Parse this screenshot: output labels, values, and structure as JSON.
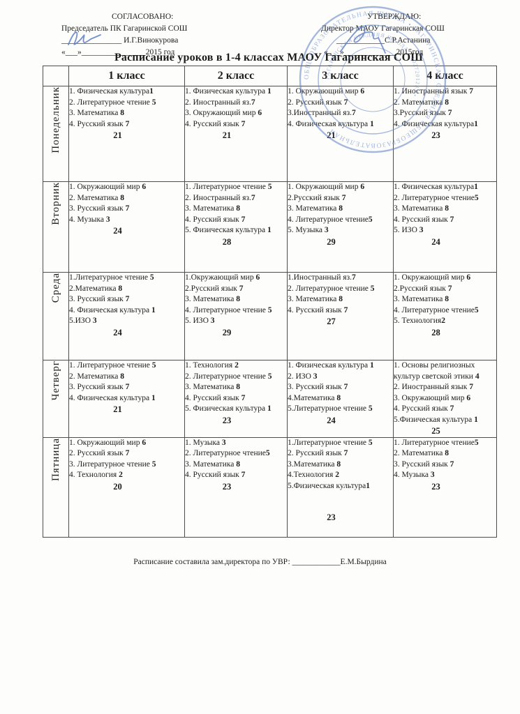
{
  "approval_left": {
    "heading": "СОГЛАСОВАНО:",
    "line2": "Председатель ПК Гагаринской СОШ",
    "line3": "_______________  И.Г.Винокурова",
    "line4": "«___»________________2015 год"
  },
  "approval_right": {
    "heading": "УТВЕРЖДАЮ:",
    "line2": "Директор МАОУ Гагаринская СОШ",
    "line3": "____________С.Р.Астанина",
    "line4": "«___»_____________2015год"
  },
  "title": "Расписание уроков в 1-4 классах МАОУ Гагаринская СОШ",
  "stamp": {
    "ring_text_outer": "ОБЩЕОБРАЗОВАТЕЛЬНАЯ ШКОЛА • ГАГАРИНСКАЯ СРЕДНЯЯ ОБЩЕОБРАЗОВАТЕЛЬНАЯ",
    "ring_text_inner": "ГАГАРИНСКАЯ СРЕДНЯЯ ШКОЛА • 1027201233 •",
    "color": "#5d7ec6"
  },
  "table": {
    "class_headers": [
      "1 класс",
      "2  класс",
      "3 класс",
      "4 класс"
    ],
    "days": [
      {
        "name": "Понедельник",
        "cells": [
          {
            "items": [
              "1.  Физическая культура1",
              "2.  Литературное чтение 5",
              "3.  Математика 8",
              "4.  Русский язык 7"
            ],
            "total": "21"
          },
          {
            "items": [
              "1. Физическая культура 1",
              "2. Иностранный яз.7",
              "3.  Окружающий мир 6",
              "4. Русский язык 7"
            ],
            "total": "21"
          },
          {
            "items": [
              "1. Окружающий мир 6",
              "2. Русский язык 7",
              "3.Иностранный яз.7",
              "4.  Физическая культура 1"
            ],
            "total": "21"
          },
          {
            "items": [
              "1. Иностранный язык 7",
              "2. Математика 8",
              "3.Русский язык 7",
              "4. Физическая культура1"
            ],
            "total": "23"
          }
        ]
      },
      {
        "name": "Вторник",
        "cells": [
          {
            "items": [
              "1. Окружающий мир 6",
              "2. Математика 8",
              "3. Русский язык 7",
              "4.  Музыка 3"
            ],
            "total": "24"
          },
          {
            "items": [
              "1. Литературное чтение 5",
              "2.  Иностранный яз.7",
              "3.  Математика 8",
              "4.  Русский язык 7",
              "5.   Физическая культура 1"
            ],
            "total": "28"
          },
          {
            "items": [
              "1. Окружающий мир 6",
              "2.Русский язык 7",
              "3. Математика 8",
              "4.  Литературное чтение5",
              "5. Музыка 3"
            ],
            "total": "29"
          },
          {
            "items": [
              "1.  Физическая культура1",
              "2. Литературное чтение5",
              "3. Математика 8",
              "4.  Русский язык 7",
              "5.  ИЗО 3"
            ],
            "total": "24"
          }
        ]
      },
      {
        "name": "Среда",
        "cells": [
          {
            "items": [
              "1.Литературное чтение 5",
              "2.Математика 8",
              "3. Русский язык 7",
              "4. Физическая культура 1",
              "5.ИЗО 3"
            ],
            "total": "24"
          },
          {
            "items": [
              "1.Окружающий мир 6",
              "2.Русский язык 7",
              "3. Математика 8",
              "4. Литературное чтение 5",
              "5.  ИЗО 3"
            ],
            "total": "29"
          },
          {
            "items": [
              "1.Иностранный яз.7",
              "2.  Литературное чтение 5",
              "3.  Математика 8",
              "4.  Русский язык 7"
            ],
            "total": "27"
          },
          {
            "items": [
              "1. Окружающий мир 6",
              "2.Русский язык 7",
              "3. Математика 8",
              "4. Литературное чтение5",
              "5. Технология2"
            ],
            "total": "28"
          }
        ]
      },
      {
        "name": "Четверг",
        "cells": [
          {
            "items": [
              "1. Литературное чтение  5",
              "2. Математика 8",
              "3. Русский язык 7",
              "4.  Физическая культура 1"
            ],
            "total": "21"
          },
          {
            "items": [
              "1.  Технология 2",
              "2. Литературное чтение 5",
              "3.  Математика  8",
              "4.   Русский язык 7",
              "5.   Физическая культура 1"
            ],
            "total": "23"
          },
          {
            "items": [
              "1.  Физическая культура 1",
              "2.  ИЗО 3",
              "3. Русский язык 7",
              "4.Математика 8",
              "5.Литературное чтение 5"
            ],
            "total": "24"
          },
          {
            "items": [
              "1. Основы религиозных культур  светской этики 4",
              "2. Иностранный язык 7",
              "3. Окружающий мир 6",
              "4.  Русский язык 7",
              "5.Физическая культура 1"
            ],
            "total": "25"
          }
        ]
      },
      {
        "name": "Пятница",
        "cells": [
          {
            "items": [
              "1. Окружающий мир 6",
              "2. Русский язык  7",
              "3. Литературное чтение 5",
              "4. Технология 2"
            ],
            "total": "20"
          },
          {
            "items": [
              "1. Музыка 3",
              "2. Литературное чтение5",
              "3. Математика 8",
              "4.  Русский язык 7"
            ],
            "total": "23"
          },
          {
            "items": [
              "1.Литературное чтение 5",
              "2.  Русский язык 7",
              "3.Математика 8",
              "4.Технология 2",
              "5.Физическая культура1"
            ],
            "total": "23",
            "total_gap": true
          },
          {
            "items": [
              "1. Литературное чтение5",
              "2. Математика 8",
              "3. Русский язык 7",
              "4. Музыка 3"
            ],
            "total": "23"
          }
        ]
      }
    ]
  },
  "footer": {
    "text": "Расписание составила зам.директора по УВР: ____________Е.М.Бырдина"
  }
}
